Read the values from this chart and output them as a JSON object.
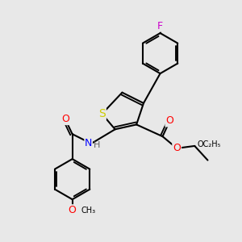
{
  "background_color": "#e8e8e8",
  "fig_size": [
    3.0,
    3.0
  ],
  "dpi": 100,
  "atom_colors": {
    "S": "#cccc00",
    "N": "#0000ff",
    "O": "#ff0000",
    "F": "#cc00cc",
    "C": "#000000",
    "H": "#606060"
  },
  "bond_color": "#000000",
  "bond_width": 1.5,
  "font_size_atoms": 9,
  "font_size_small": 7
}
